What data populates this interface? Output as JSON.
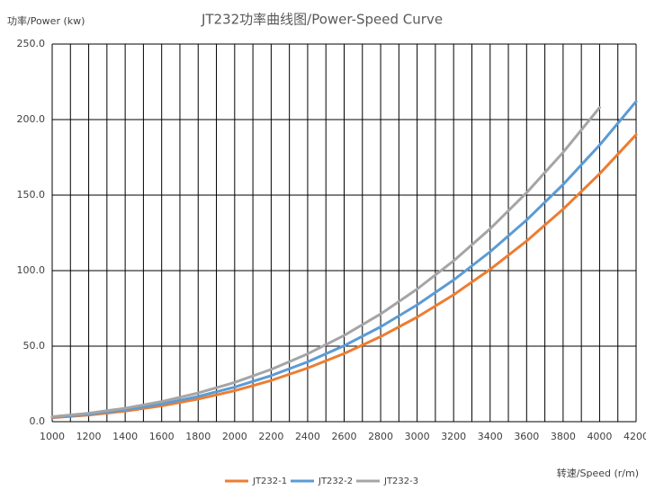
{
  "chart_data": {
    "type": "line",
    "title": "JT232功率曲线图/Power-Speed Curve",
    "y_label": "功率/Power (kw)",
    "x_label": "转速/Speed (r/m)",
    "x": [
      1000,
      1200,
      1400,
      1600,
      1800,
      2000,
      2200,
      2400,
      2600,
      2800,
      3000,
      3200,
      3400,
      3600,
      3800,
      4000,
      4200
    ],
    "series": [
      {
        "name": "JT232-1",
        "color": "#ed7d31",
        "values": [
          2.6,
          4.4,
          7.0,
          10.5,
          15.0,
          20.5,
          27.3,
          35.5,
          45.1,
          56.3,
          69.2,
          84.0,
          100.8,
          119.6,
          140.7,
          164.1,
          190.0
        ]
      },
      {
        "name": "JT232-2",
        "color": "#5b9bd5",
        "values": [
          2.9,
          4.9,
          7.9,
          11.7,
          16.7,
          22.9,
          30.5,
          39.6,
          50.3,
          62.8,
          77.3,
          93.8,
          112.5,
          133.5,
          157.0,
          183.1,
          212.0
        ]
      },
      {
        "name": "JT232-3",
        "color": "#a5a5a5",
        "values": [
          3.3,
          5.6,
          8.9,
          13.3,
          19.0,
          26.0,
          34.6,
          44.9,
          57.1,
          71.3,
          87.8,
          106.5,
          127.7,
          151.6,
          178.3,
          208.0,
          null
        ]
      }
    ],
    "xlim": [
      1000,
      4200
    ],
    "xticks": [
      1000,
      1200,
      1400,
      1600,
      1800,
      2000,
      2200,
      2400,
      2600,
      2800,
      3000,
      3200,
      3400,
      3600,
      3800,
      4000,
      4200
    ],
    "xgrid": [
      1000,
      1100,
      1200,
      1300,
      1400,
      1500,
      1600,
      1700,
      1800,
      1900,
      2000,
      2100,
      2200,
      2300,
      2400,
      2500,
      2600,
      2700,
      2800,
      2900,
      3000,
      3100,
      3200,
      3300,
      3400,
      3500,
      3600,
      3700,
      3800,
      3900,
      4000,
      4100,
      4200
    ],
    "ylim": [
      0,
      250
    ],
    "yticks": [
      {
        "value": 0,
        "label": "0.0"
      },
      {
        "value": 50,
        "label": "50.0"
      },
      {
        "value": 100,
        "label": "100.0"
      },
      {
        "value": 150,
        "label": "150.0"
      },
      {
        "value": 200,
        "label": "200.0"
      },
      {
        "value": 250,
        "label": "250.0"
      }
    ],
    "grid": true,
    "legend": "bottom"
  }
}
